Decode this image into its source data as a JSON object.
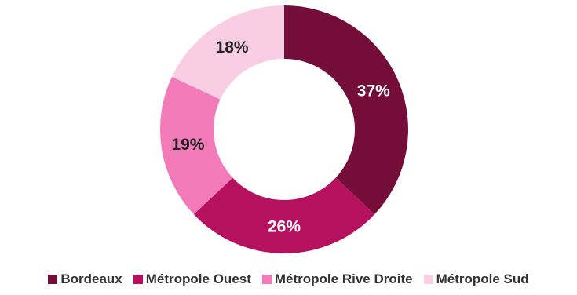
{
  "chart_data": {
    "type": "pie",
    "variant": "donut",
    "title": "",
    "slices": [
      {
        "label": "Bordeaux",
        "value": 37,
        "value_label": "37%",
        "color": "#750d3a",
        "text_color": "#ffffff"
      },
      {
        "label": "Métropole Ouest",
        "value": 26,
        "value_label": "26%",
        "color": "#b5115f",
        "text_color": "#ffffff"
      },
      {
        "label": "Métropole Rive Droite",
        "value": 19,
        "value_label": "19%",
        "color": "#f27ab8",
        "text_color": "#222222"
      },
      {
        "label": "Métropole Sud",
        "value": 18,
        "value_label": "18%",
        "color": "#f9cde3",
        "text_color": "#222222"
      }
    ],
    "legend_position": "bottom"
  }
}
